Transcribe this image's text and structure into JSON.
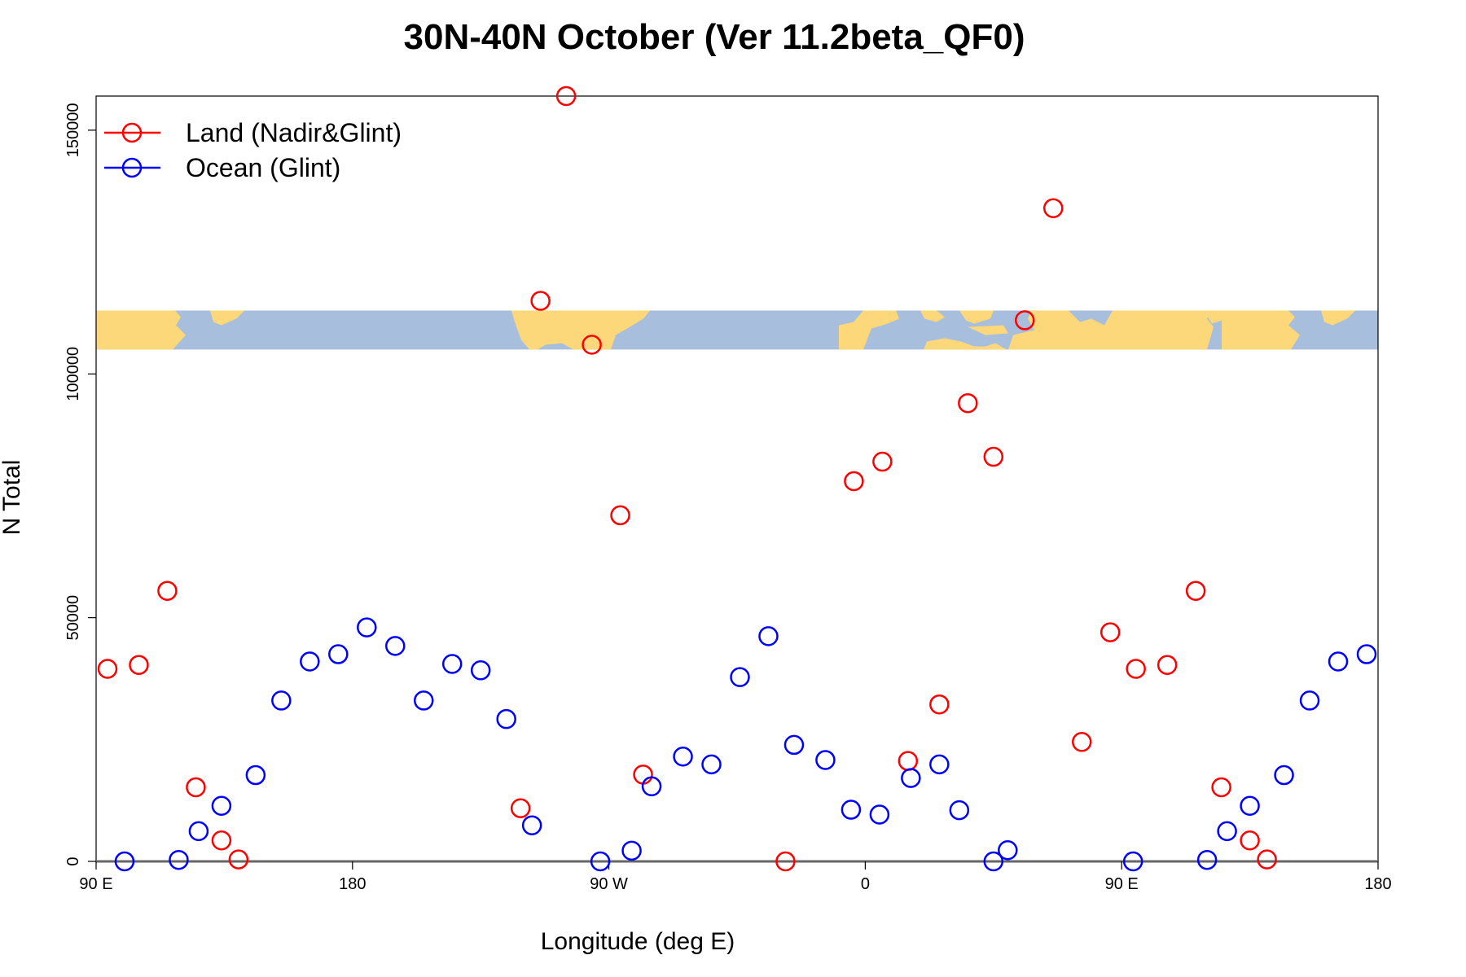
{
  "chart_data": {
    "type": "scatter",
    "title": "30N-40N October (Ver 11.2beta_QF0)",
    "xlabel": "Longitude (deg E)",
    "ylabel": "N Total",
    "xlim": [
      0,
      450
    ],
    "ylim": [
      0,
      157000
    ],
    "x_ticks": [
      {
        "value": 0,
        "label": "90 E"
      },
      {
        "value": 90,
        "label": "180"
      },
      {
        "value": 180,
        "label": "90 W"
      },
      {
        "value": 270,
        "label": "0"
      },
      {
        "value": 360,
        "label": "90 E"
      },
      {
        "value": 450,
        "label": "180"
      }
    ],
    "y_ticks": [
      {
        "value": 0,
        "label": "0"
      },
      {
        "value": 50000,
        "label": "50000"
      },
      {
        "value": 100000,
        "label": "100000"
      },
      {
        "value": 150000,
        "label": "150000"
      }
    ],
    "legend": {
      "position": "top-left"
    },
    "map_band": {
      "ymin": 105000,
      "ymax": 113000,
      "land_color": "#fdd87a",
      "ocean_color": "#a8bedd"
    },
    "series": [
      {
        "name": "Land (Nadir&Glint)",
        "color": "#ff0000",
        "points": [
          [
            4,
            39500
          ],
          [
            15,
            40300
          ],
          [
            25,
            55500
          ],
          [
            35,
            15200
          ],
          [
            44,
            4300
          ],
          [
            50,
            400
          ],
          [
            149,
            10900
          ],
          [
            156,
            115000
          ],
          [
            165,
            157000
          ],
          [
            174,
            106000
          ],
          [
            184,
            71000
          ],
          [
            192,
            17800
          ],
          [
            242,
            0
          ],
          [
            266,
            78000
          ],
          [
            276,
            82000
          ],
          [
            285,
            20600
          ],
          [
            296,
            32200
          ],
          [
            306,
            94000
          ],
          [
            315,
            83000
          ],
          [
            326,
            111000
          ],
          [
            336,
            134000
          ],
          [
            346,
            24500
          ],
          [
            356,
            47000
          ],
          [
            365,
            39500
          ],
          [
            376,
            40300
          ],
          [
            386,
            55500
          ],
          [
            395,
            15200
          ],
          [
            405,
            4300
          ],
          [
            411,
            400
          ]
        ]
      },
      {
        "name": "Ocean (Glint)",
        "color": "#0000ff",
        "points": [
          [
            10,
            0
          ],
          [
            29,
            300
          ],
          [
            36,
            6200
          ],
          [
            44,
            11400
          ],
          [
            56,
            17700
          ],
          [
            65,
            33000
          ],
          [
            75,
            41000
          ],
          [
            85,
            42500
          ],
          [
            95,
            48000
          ],
          [
            105,
            44200
          ],
          [
            115,
            33000
          ],
          [
            125,
            40500
          ],
          [
            135,
            39200
          ],
          [
            144,
            29200
          ],
          [
            153,
            7400
          ],
          [
            177,
            0
          ],
          [
            188,
            2200
          ],
          [
            195,
            15400
          ],
          [
            206,
            21500
          ],
          [
            216,
            19900
          ],
          [
            226,
            37800
          ],
          [
            236,
            46200
          ],
          [
            245,
            23900
          ],
          [
            256,
            20800
          ],
          [
            265,
            10600
          ],
          [
            275,
            9600
          ],
          [
            286,
            17100
          ],
          [
            296,
            19900
          ],
          [
            303,
            10500
          ],
          [
            315,
            0
          ],
          [
            320,
            2300
          ],
          [
            364,
            0
          ],
          [
            390,
            300
          ],
          [
            397,
            6200
          ],
          [
            405,
            11400
          ],
          [
            417,
            17700
          ],
          [
            426,
            33000
          ],
          [
            436,
            41000
          ],
          [
            446,
            42500
          ]
        ]
      }
    ]
  }
}
